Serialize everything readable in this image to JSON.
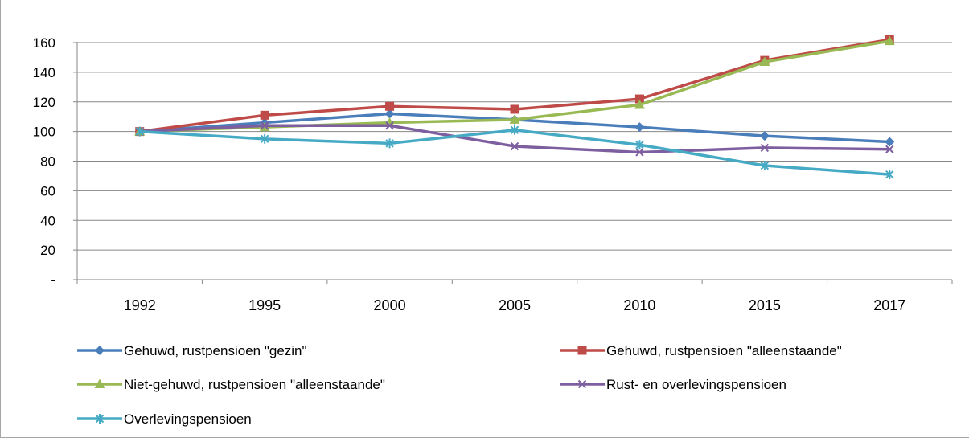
{
  "chart_data": {
    "type": "line",
    "x": [
      "1992",
      "1995",
      "2000",
      "2005",
      "2010",
      "2015",
      "2017"
    ],
    "ylim": [
      0,
      160
    ],
    "yticks": [
      {
        "value": 0,
        "label": "-"
      },
      {
        "value": 20,
        "label": "20"
      },
      {
        "value": 40,
        "label": "40"
      },
      {
        "value": 60,
        "label": "60"
      },
      {
        "value": 80,
        "label": "80"
      },
      {
        "value": 100,
        "label": "100"
      },
      {
        "value": 120,
        "label": "120"
      },
      {
        "value": 140,
        "label": "140"
      },
      {
        "value": 160,
        "label": "160"
      }
    ],
    "grid": true,
    "legend_position": "bottom",
    "series": [
      {
        "name": "Gehuwd, rustpensioen \"gezin\"",
        "color": "#4a7ebb",
        "marker": "diamond",
        "values": [
          100,
          106,
          112,
          108,
          103,
          97,
          93
        ]
      },
      {
        "name": "Gehuwd, rustpensioen \"alleenstaande\"",
        "color": "#be4b48",
        "marker": "square",
        "values": [
          100,
          111,
          117,
          115,
          122,
          148,
          162
        ]
      },
      {
        "name": "Niet-gehuwd, rustpensioen \"alleenstaande\"",
        "color": "#98b954",
        "marker": "triangle",
        "values": [
          100,
          103,
          106,
          108,
          118,
          147,
          161
        ]
      },
      {
        "name": "Rust- en overlevingspensioen",
        "color": "#7d5fa0",
        "marker": "x",
        "values": [
          100,
          104,
          104,
          90,
          86,
          89,
          88
        ]
      },
      {
        "name": "Overlevingspensioen",
        "color": "#46aac5",
        "marker": "star",
        "values": [
          100,
          95,
          92,
          101,
          91,
          77,
          71
        ]
      }
    ]
  }
}
